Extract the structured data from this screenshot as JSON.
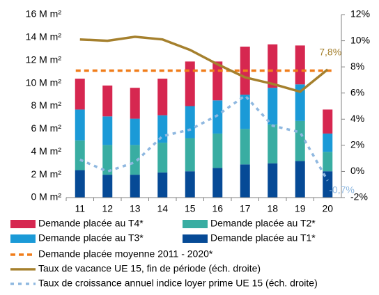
{
  "chart_data": {
    "type": "bar",
    "categories": [
      "11",
      "12",
      "13",
      "14",
      "15",
      "16",
      "17",
      "18",
      "19",
      "20"
    ],
    "series": [
      {
        "name": "Demande placée au T1*",
        "color": "#064a96",
        "values": [
          2.4,
          2.0,
          2.0,
          2.2,
          2.3,
          2.6,
          2.9,
          3.0,
          3.2,
          2.3
        ]
      },
      {
        "name": "Demande placée au T2*",
        "color": "#39ada2",
        "values": [
          2.6,
          2.6,
          2.6,
          2.6,
          2.9,
          3.0,
          3.1,
          3.4,
          3.5,
          1.7
        ]
      },
      {
        "name": "Demande placée au T3*",
        "color": "#1b9ad7",
        "values": [
          2.7,
          2.5,
          2.3,
          2.4,
          2.8,
          2.9,
          3.0,
          3.2,
          3.2,
          1.6
        ]
      },
      {
        "name": "Demande placée au T4*",
        "color": "#d62750",
        "values": [
          2.7,
          2.7,
          2.7,
          3.2,
          3.9,
          3.4,
          4.2,
          3.8,
          3.4,
          2.1
        ]
      }
    ],
    "average": {
      "name": "Demande placée moyenne 2011 - 2020*",
      "color": "#f07d1a",
      "value": 11.1
    },
    "lines": [
      {
        "name": "Taux de vacance UE 15, fin de période (éch. droite)",
        "color": "#a5802d",
        "axis": "y2",
        "style": "solid",
        "values": [
          10.1,
          10.0,
          10.3,
          10.1,
          9.3,
          8.2,
          7.2,
          6.7,
          6.1,
          7.8
        ]
      },
      {
        "name": "Taux de croissance annuel indice loyer prime UE 15 (éch. droite)",
        "color": "#8fb8e0",
        "axis": "y2",
        "style": "dotted",
        "values": [
          0.9,
          0.0,
          0.7,
          2.7,
          3.2,
          4.3,
          5.8,
          3.5,
          3.0,
          -0.7
        ]
      }
    ],
    "annotations": [
      {
        "text": "7,8%",
        "series": 0,
        "index": 9
      },
      {
        "text": "-0,7%",
        "series": 1,
        "index": 9
      }
    ],
    "ylim": [
      0,
      16
    ],
    "yticks": [
      {
        "value": 0,
        "label": "0 M m²"
      },
      {
        "value": 2,
        "label": "2 M m²"
      },
      {
        "value": 4,
        "label": "4 M m²"
      },
      {
        "value": 6,
        "label": "6 M m²"
      },
      {
        "value": 8,
        "label": "8 M m²"
      },
      {
        "value": 10,
        "label": "10 M m²"
      },
      {
        "value": 12,
        "label": "12 M m²"
      },
      {
        "value": 14,
        "label": "14 M m²"
      },
      {
        "value": 16,
        "label": "16 M m²"
      }
    ],
    "y2lim": [
      -2,
      12
    ],
    "y2ticks": [
      {
        "value": -2,
        "label": "-2%"
      },
      {
        "value": 0,
        "label": "0%"
      },
      {
        "value": 2,
        "label": "2%"
      },
      {
        "value": 4,
        "label": "4%"
      },
      {
        "value": 6,
        "label": "6%"
      },
      {
        "value": 8,
        "label": "8%"
      },
      {
        "value": 10,
        "label": "10%"
      },
      {
        "value": 12,
        "label": "12%"
      }
    ]
  }
}
